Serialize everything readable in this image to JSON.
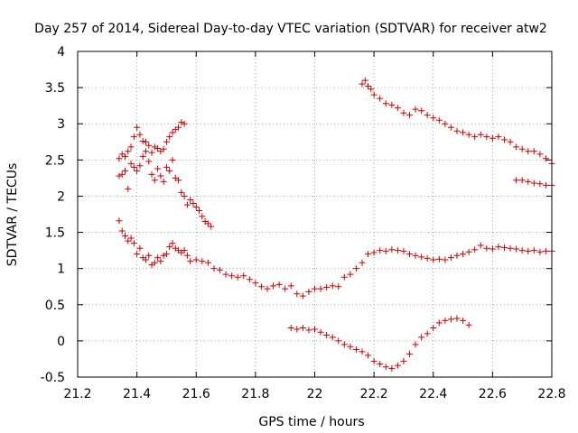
{
  "chart_data": {
    "type": "scatter",
    "title": "Day 257 of 2014, Sidereal Day-to-day VTEC variation (SDTVAR) for receiver atw2",
    "xlabel": "GPS time / hours",
    "ylabel": "SDTVAR / TECUs",
    "xlim": [
      21.2,
      22.8
    ],
    "ylim": [
      -0.5,
      4
    ],
    "grid": true,
    "marker": "+",
    "marker_color": "#cc0000",
    "x_ticks": [
      21.2,
      21.4,
      21.6,
      21.8,
      22.0,
      22.2,
      22.4,
      22.6,
      22.8
    ],
    "x_tick_labels": [
      "21.2",
      "21.4",
      "21.6",
      "21.8",
      "22",
      "22.2",
      "22.4",
      "22.6",
      "22.8"
    ],
    "y_ticks": [
      -0.5,
      0,
      0.5,
      1,
      1.5,
      2,
      2.5,
      3,
      3.5,
      4
    ],
    "y_tick_labels": [
      "-0.5",
      "0",
      "0.5",
      "1",
      "1.5",
      "2",
      "2.5",
      "3",
      "3.5",
      "4"
    ],
    "series": [
      {
        "name": "upper-left-track",
        "x": [
          21.34,
          21.35,
          21.36,
          21.37,
          21.38,
          21.39,
          21.4,
          21.41,
          21.42,
          21.43,
          21.44,
          21.45,
          21.46,
          21.47,
          21.48,
          21.49,
          21.5,
          21.51,
          21.52,
          21.53,
          21.54,
          21.55,
          21.56
        ],
        "y": [
          2.52,
          2.58,
          2.55,
          2.62,
          2.68,
          2.82,
          2.95,
          2.85,
          2.76,
          2.75,
          2.7,
          2.6,
          2.68,
          2.66,
          2.62,
          2.65,
          2.75,
          2.82,
          2.88,
          2.92,
          2.95,
          3.02,
          3.0
        ]
      },
      {
        "name": "descending-track",
        "x": [
          21.34,
          21.35,
          21.36,
          21.37,
          21.38,
          21.39,
          21.4,
          21.41,
          21.42,
          21.43,
          21.44,
          21.45,
          21.46,
          21.47,
          21.48,
          21.49,
          21.5,
          21.51,
          21.52,
          21.53,
          21.54,
          21.55,
          21.56,
          21.57,
          21.58,
          21.59,
          21.6,
          21.61,
          21.62,
          21.63,
          21.64,
          21.65
        ],
        "y": [
          2.28,
          2.3,
          2.35,
          2.1,
          2.45,
          2.4,
          2.35,
          2.42,
          2.55,
          2.62,
          2.48,
          2.3,
          2.22,
          2.38,
          2.28,
          2.2,
          2.4,
          2.35,
          2.5,
          2.25,
          2.22,
          2.05,
          2.0,
          1.88,
          1.95,
          1.9,
          1.85,
          1.8,
          1.72,
          1.65,
          1.62,
          1.58
        ]
      },
      {
        "name": "middle-track",
        "x": [
          21.34,
          21.35,
          21.36,
          21.37,
          21.38,
          21.39,
          21.4,
          21.41,
          21.42,
          21.43,
          21.44,
          21.45,
          21.46,
          21.47,
          21.48,
          21.49,
          21.5,
          21.51,
          21.52,
          21.53,
          21.54,
          21.55,
          21.56,
          21.57,
          21.58,
          21.6,
          21.62,
          21.64,
          21.66,
          21.68,
          21.7,
          21.72,
          21.74,
          21.76,
          21.78,
          21.8,
          21.82,
          21.84,
          21.86,
          21.88,
          21.9,
          21.92,
          21.94,
          21.96,
          21.98,
          22.0,
          22.02,
          22.04,
          22.06,
          22.08,
          22.1,
          22.12,
          22.14,
          22.16,
          22.18,
          22.2,
          22.22,
          22.24,
          22.26,
          22.28,
          22.3,
          22.32,
          22.34,
          22.36,
          22.38,
          22.4,
          22.42,
          22.44,
          22.46,
          22.48,
          22.5,
          22.52,
          22.54,
          22.56,
          22.58,
          22.6,
          22.62,
          22.64,
          22.66,
          22.68,
          22.7,
          22.72,
          22.74,
          22.76,
          22.78,
          22.8
        ],
        "y": [
          1.66,
          1.52,
          1.45,
          1.38,
          1.42,
          1.35,
          1.2,
          1.28,
          1.15,
          1.12,
          1.18,
          1.05,
          1.08,
          1.15,
          1.1,
          1.18,
          1.2,
          1.3,
          1.35,
          1.28,
          1.25,
          1.22,
          1.25,
          1.18,
          1.1,
          1.12,
          1.1,
          1.08,
          1.0,
          0.98,
          0.92,
          0.9,
          0.88,
          0.9,
          0.85,
          0.8,
          0.75,
          0.72,
          0.76,
          0.78,
          0.72,
          0.76,
          0.65,
          0.62,
          0.68,
          0.72,
          0.72,
          0.74,
          0.76,
          0.75,
          0.88,
          0.92,
          1.0,
          1.08,
          1.2,
          1.22,
          1.25,
          1.24,
          1.26,
          1.25,
          1.24,
          1.2,
          1.18,
          1.16,
          1.14,
          1.12,
          1.13,
          1.12,
          1.15,
          1.18,
          1.2,
          1.23,
          1.26,
          1.32,
          1.28,
          1.27,
          1.3,
          1.29,
          1.28,
          1.27,
          1.25,
          1.24,
          1.25,
          1.23,
          1.24,
          1.24
        ]
      },
      {
        "name": "lower-right-track",
        "x": [
          21.92,
          21.94,
          21.96,
          21.98,
          22.0,
          22.02,
          22.04,
          22.06,
          22.08,
          22.1,
          22.12,
          22.14,
          22.16,
          22.18,
          22.2,
          22.22,
          22.24,
          22.26,
          22.28,
          22.3,
          22.32,
          22.34,
          22.36,
          22.38,
          22.4,
          22.42,
          22.44,
          22.46,
          22.48,
          22.5,
          22.52
        ],
        "y": [
          0.18,
          0.16,
          0.18,
          0.15,
          0.16,
          0.12,
          0.08,
          0.05,
          0.0,
          -0.05,
          -0.08,
          -0.12,
          -0.15,
          -0.2,
          -0.28,
          -0.32,
          -0.36,
          -0.38,
          -0.34,
          -0.28,
          -0.18,
          -0.05,
          0.05,
          0.1,
          0.18,
          0.25,
          0.28,
          0.3,
          0.31,
          0.28,
          0.22
        ]
      },
      {
        "name": "upper-right-track",
        "x": [
          22.16,
          22.17,
          22.18,
          22.19,
          22.2,
          22.22,
          22.24,
          22.26,
          22.28,
          22.3,
          22.32,
          22.34,
          22.36,
          22.38,
          22.4,
          22.42,
          22.44,
          22.46,
          22.48,
          22.5,
          22.52,
          22.54,
          22.56,
          22.58,
          22.6,
          22.62,
          22.64,
          22.66,
          22.68,
          22.7,
          22.72,
          22.74,
          22.76,
          22.78,
          22.8
        ],
        "y": [
          3.55,
          3.6,
          3.52,
          3.48,
          3.4,
          3.35,
          3.28,
          3.26,
          3.22,
          3.15,
          3.12,
          3.2,
          3.18,
          3.12,
          3.08,
          3.05,
          3.0,
          2.95,
          2.9,
          2.88,
          2.85,
          2.82,
          2.85,
          2.82,
          2.8,
          2.82,
          2.78,
          2.75,
          2.68,
          2.65,
          2.62,
          2.62,
          2.58,
          2.52,
          2.45
        ]
      },
      {
        "name": "right-tail-track",
        "x": [
          22.68,
          22.7,
          22.72,
          22.74,
          22.76,
          22.78,
          22.8
        ],
        "y": [
          2.22,
          2.22,
          2.2,
          2.18,
          2.17,
          2.15,
          2.15
        ]
      }
    ]
  }
}
